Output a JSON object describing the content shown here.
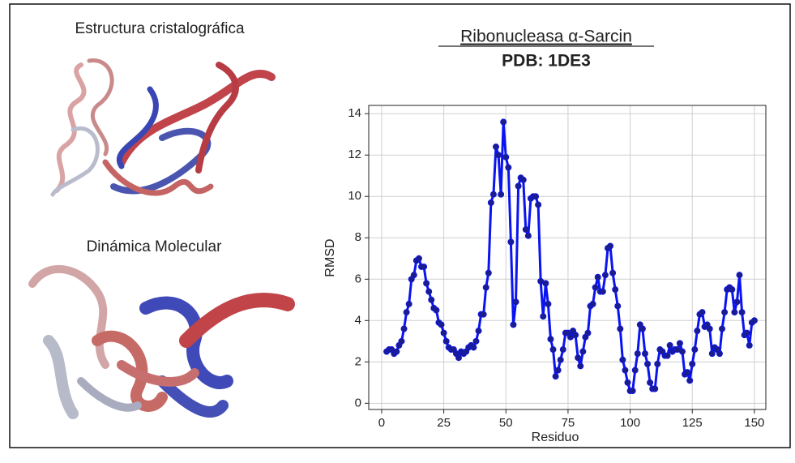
{
  "chart_data": {
    "type": "line",
    "title": "Ribonucleasa α-Sarcin",
    "subtitle": "PDB: 1DE3",
    "panel_labels": [
      "Estructura cristalográfica",
      "Dinámica Molecular"
    ],
    "xlabel": "Residuo",
    "ylabel": "RMSD",
    "x": [
      2,
      3,
      4,
      5,
      6,
      7,
      8,
      9,
      10,
      11,
      12,
      13,
      14,
      15,
      16,
      17,
      18,
      19,
      20,
      21,
      22,
      23,
      24,
      25,
      26,
      27,
      28,
      29,
      30,
      31,
      32,
      33,
      34,
      35,
      36,
      37,
      38,
      39,
      40,
      41,
      42,
      43,
      44,
      45,
      46,
      47,
      48,
      49,
      50,
      51,
      52,
      53,
      54,
      55,
      56,
      57,
      58,
      59,
      60,
      61,
      62,
      63,
      64,
      65,
      66,
      67,
      68,
      69,
      70,
      71,
      72,
      73,
      74,
      75,
      76,
      77,
      78,
      79,
      80,
      81,
      82,
      83,
      84,
      85,
      86,
      87,
      88,
      89,
      90,
      91,
      92,
      93,
      94,
      95,
      96,
      97,
      98,
      99,
      100,
      101,
      102,
      103,
      104,
      105,
      106,
      107,
      108,
      109,
      110,
      111,
      112,
      113,
      114,
      115,
      116,
      117,
      118,
      119,
      120,
      121,
      122,
      123,
      124,
      125,
      126,
      127,
      128,
      129,
      130,
      131,
      132,
      133,
      134,
      135,
      136,
      137,
      138,
      139,
      140,
      141,
      142,
      143,
      144,
      145,
      146,
      147,
      148,
      149,
      150
    ],
    "series": [
      {
        "name": "RMSD",
        "color": "#0a14f0",
        "marker_color": "#1c1c8a",
        "values": [
          2.5,
          2.6,
          2.6,
          2.4,
          2.5,
          2.8,
          3.0,
          3.6,
          4.4,
          4.8,
          6.0,
          6.2,
          6.9,
          7.0,
          6.6,
          6.6,
          5.8,
          5.4,
          5.0,
          4.6,
          4.5,
          3.9,
          3.8,
          3.4,
          3.0,
          2.7,
          2.6,
          2.6,
          2.4,
          2.2,
          2.5,
          2.4,
          2.5,
          2.7,
          2.8,
          2.7,
          3.0,
          3.5,
          4.3,
          4.3,
          5.6,
          6.3,
          9.7,
          10.1,
          12.4,
          12.0,
          10.1,
          13.6,
          11.9,
          11.4,
          7.8,
          3.8,
          4.9,
          10.5,
          10.9,
          10.8,
          8.4,
          8.1,
          9.9,
          10.0,
          10.0,
          9.6,
          5.9,
          4.2,
          5.8,
          4.8,
          3.1,
          2.6,
          1.3,
          1.6,
          2.1,
          2.6,
          3.4,
          3.4,
          3.2,
          3.5,
          3.3,
          2.2,
          1.8,
          2.5,
          3.2,
          3.4,
          4.7,
          4.8,
          5.6,
          6.1,
          5.4,
          5.4,
          6.2,
          7.5,
          7.6,
          6.3,
          5.5,
          4.7,
          3.6,
          2.1,
          1.6,
          1.0,
          0.6,
          0.6,
          1.6,
          2.4,
          3.8,
          3.6,
          2.4,
          1.9,
          1.0,
          0.7,
          0.7,
          1.9,
          2.6,
          2.5,
          2.3,
          2.3,
          2.8,
          2.5,
          2.6,
          2.6,
          2.9,
          2.5,
          1.4,
          1.5,
          1.1,
          1.9,
          2.6,
          3.5,
          4.3,
          4.4,
          3.7,
          3.8,
          3.6,
          2.4,
          2.7,
          2.6,
          2.4,
          3.6,
          4.4,
          5.5,
          5.6,
          5.5,
          4.4,
          4.9,
          6.2,
          4.4,
          3.3,
          3.4,
          2.8,
          3.9,
          4.0
        ]
      }
    ],
    "xlim": [
      -5.2,
      154.6
    ],
    "ylim": [
      -0.3,
      14.4
    ],
    "xticks": [
      0,
      25,
      50,
      75,
      100,
      125,
      150
    ],
    "yticks": [
      0,
      2,
      4,
      6,
      8,
      10,
      12,
      14
    ],
    "grid": true
  }
}
